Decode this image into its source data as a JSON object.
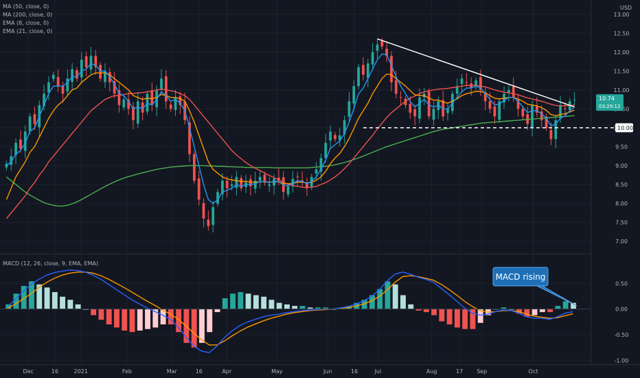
{
  "chart_data": {
    "type": "candlestick",
    "price_panel": {
      "currency": "USD",
      "y_ticks": [
        "13.00",
        "12.50",
        "12.00",
        "11.50",
        "11.00",
        "10.50",
        "10.00",
        "9.50",
        "9.00",
        "8.50",
        "8.00",
        "7.50",
        "7.00"
      ],
      "ylim": [
        6.8,
        13.05
      ],
      "last_price": "10.74",
      "countdown": "03:29:12",
      "support_level": "10.00",
      "indicators": [
        {
          "label": "MA (50, close, 0)",
          "color": "#ef5350"
        },
        {
          "label": "MA (200, close, 0)",
          "color": "#4caf50"
        },
        {
          "label": "EMA (8, close, 0)",
          "color": "#2196f3"
        },
        {
          "label": "EMA (21, close, 0)",
          "color": "#ff9800"
        }
      ],
      "close": [
        9.05,
        9.25,
        9.6,
        9.45,
        9.9,
        10.3,
        10.1,
        10.6,
        10.9,
        11.2,
        11.4,
        11.1,
        10.9,
        11.3,
        11.55,
        11.3,
        11.8,
        11.6,
        11.9,
        11.6,
        11.3,
        11.5,
        11.2,
        10.9,
        10.6,
        10.75,
        10.5,
        10.2,
        10.7,
        10.4,
        10.9,
        10.6,
        11.0,
        11.3,
        10.7,
        10.5,
        10.8,
        10.6,
        10.2,
        9.3,
        8.6,
        8.1,
        7.6,
        7.4,
        7.9,
        8.3,
        8.6,
        8.4,
        8.5,
        8.7,
        8.4,
        8.55,
        8.45,
        8.6,
        8.7,
        8.55,
        8.5,
        8.65,
        8.6,
        8.3,
        8.45,
        8.65,
        8.7,
        8.55,
        8.4,
        8.7,
        8.9,
        9.2,
        9.6,
        9.9,
        9.7,
        9.8,
        10.2,
        10.7,
        11.1,
        11.6,
        11.4,
        11.7,
        12.0,
        12.2,
        12.15,
        11.9,
        11.2,
        10.9,
        10.8,
        10.6,
        10.4,
        10.3,
        10.8,
        10.9,
        10.3,
        10.5,
        10.7,
        10.3,
        10.5,
        10.9,
        11.1,
        11.3,
        11.2,
        11.05,
        11.25,
        11.0,
        10.7,
        10.5,
        10.3,
        10.7,
        10.9,
        11.0,
        10.8,
        10.5,
        10.3,
        10.1,
        10.6,
        10.4,
        10.2,
        10.0,
        9.7,
        10.2,
        10.6,
        10.5,
        10.7,
        10.74
      ],
      "ema8": [
        9.0,
        9.1,
        9.3,
        9.4,
        9.6,
        9.9,
        10.0,
        10.3,
        10.6,
        10.9,
        11.1,
        11.1,
        11.1,
        11.2,
        11.35,
        11.35,
        11.5,
        11.55,
        11.7,
        11.65,
        11.5,
        11.5,
        11.35,
        11.15,
        10.9,
        10.85,
        10.7,
        10.5,
        10.55,
        10.5,
        10.65,
        10.6,
        10.75,
        10.95,
        10.85,
        10.7,
        10.75,
        10.65,
        10.45,
        10.0,
        9.5,
        9.0,
        8.5,
        8.1,
        8.0,
        8.1,
        8.3,
        8.35,
        8.4,
        8.5,
        8.45,
        8.5,
        8.5,
        8.52,
        8.58,
        8.57,
        8.55,
        8.58,
        8.58,
        8.48,
        8.47,
        8.53,
        8.6,
        8.58,
        8.52,
        8.58,
        8.7,
        8.9,
        9.15,
        9.45,
        9.55,
        9.65,
        9.85,
        10.15,
        10.5,
        10.9,
        11.05,
        11.3,
        11.55,
        11.8,
        11.95,
        11.93,
        11.65,
        11.35,
        11.1,
        10.9,
        10.7,
        10.55,
        10.65,
        10.75,
        10.6,
        10.55,
        10.6,
        10.5,
        10.5,
        10.65,
        10.8,
        10.95,
        11.05,
        11.05,
        11.1,
        11.05,
        10.9,
        10.75,
        10.6,
        10.63,
        10.72,
        10.8,
        10.8,
        10.7,
        10.55,
        10.4,
        10.45,
        10.45,
        10.37,
        10.25,
        10.05,
        10.1,
        10.25,
        10.32,
        10.45,
        10.55
      ],
      "ema21": [
        8.1,
        8.4,
        8.7,
        8.9,
        9.1,
        9.35,
        9.5,
        9.75,
        10.0,
        10.25,
        10.45,
        10.6,
        10.7,
        10.85,
        11.0,
        11.05,
        11.2,
        11.3,
        11.4,
        11.45,
        11.45,
        11.45,
        11.4,
        11.3,
        11.2,
        11.1,
        11.0,
        10.85,
        10.8,
        10.75,
        10.78,
        10.77,
        10.8,
        10.88,
        10.85,
        10.8,
        10.8,
        10.77,
        10.7,
        10.45,
        10.15,
        9.8,
        9.45,
        9.1,
        8.9,
        8.8,
        8.7,
        8.65,
        8.62,
        8.6,
        8.58,
        8.58,
        8.56,
        8.56,
        8.57,
        8.57,
        8.56,
        8.57,
        8.57,
        8.53,
        8.52,
        8.53,
        8.56,
        8.56,
        8.54,
        8.56,
        8.61,
        8.7,
        8.85,
        9.05,
        9.2,
        9.32,
        9.5,
        9.72,
        9.98,
        10.25,
        10.45,
        10.65,
        10.9,
        11.1,
        11.3,
        11.42,
        11.4,
        11.3,
        11.2,
        11.1,
        10.98,
        10.87,
        10.85,
        10.85,
        10.78,
        10.73,
        10.73,
        10.68,
        10.65,
        10.7,
        10.77,
        10.85,
        10.9,
        10.93,
        10.96,
        10.96,
        10.92,
        10.85,
        10.78,
        10.76,
        10.78,
        10.8,
        10.8,
        10.76,
        10.7,
        10.62,
        10.6,
        10.58,
        10.53,
        10.46,
        10.35,
        10.32,
        10.35,
        10.37,
        10.42,
        10.47
      ],
      "ma50": [
        7.6,
        7.75,
        7.9,
        8.05,
        8.2,
        8.4,
        8.55,
        8.75,
        8.9,
        9.1,
        9.25,
        9.4,
        9.55,
        9.7,
        9.85,
        10.0,
        10.15,
        10.3,
        10.45,
        10.55,
        10.65,
        10.75,
        10.8,
        10.85,
        10.85,
        10.88,
        10.9,
        10.9,
        10.92,
        10.93,
        10.95,
        10.97,
        11.0,
        11.02,
        11.0,
        10.98,
        10.95,
        10.9,
        10.85,
        10.75,
        10.6,
        10.45,
        10.3,
        10.15,
        10.0,
        9.85,
        9.7,
        9.55,
        9.4,
        9.28,
        9.18,
        9.08,
        9.0,
        8.93,
        8.87,
        8.8,
        8.74,
        8.68,
        8.62,
        8.56,
        8.5,
        8.47,
        8.45,
        8.43,
        8.42,
        8.43,
        8.45,
        8.5,
        8.55,
        8.62,
        8.7,
        8.8,
        8.92,
        9.05,
        9.2,
        9.35,
        9.5,
        9.65,
        9.8,
        9.97,
        10.12,
        10.27,
        10.4,
        10.5,
        10.6,
        10.7,
        10.78,
        10.84,
        10.9,
        10.95,
        10.98,
        11.0,
        11.02,
        11.03,
        11.04,
        11.06,
        11.08,
        11.1,
        11.12,
        11.12,
        11.12,
        11.1,
        11.08,
        11.04,
        11.0,
        10.97,
        10.94,
        10.92,
        10.9,
        10.87,
        10.83,
        10.79,
        10.76,
        10.73,
        10.7,
        10.66,
        10.62,
        10.59,
        10.58,
        10.58,
        10.59,
        10.6
      ],
      "ma200": [
        8.7,
        8.6,
        8.5,
        8.4,
        8.3,
        8.22,
        8.15,
        8.08,
        8.02,
        7.98,
        7.95,
        7.93,
        7.93,
        7.95,
        7.99,
        8.04,
        8.1,
        8.17,
        8.24,
        8.31,
        8.38,
        8.45,
        8.51,
        8.57,
        8.62,
        8.67,
        8.71,
        8.74,
        8.78,
        8.81,
        8.84,
        8.87,
        8.9,
        8.92,
        8.94,
        8.96,
        8.97,
        8.98,
        8.99,
        9.0,
        9.0,
        9.0,
        9.0,
        8.99,
        8.99,
        8.98,
        8.98,
        8.97,
        8.97,
        8.96,
        8.96,
        8.95,
        8.95,
        8.95,
        8.95,
        8.95,
        8.95,
        8.94,
        8.94,
        8.94,
        8.94,
        8.94,
        8.94,
        8.94,
        8.94,
        8.95,
        8.96,
        8.97,
        8.98,
        9.0,
        9.02,
        9.05,
        9.08,
        9.12,
        9.16,
        9.2,
        9.25,
        9.3,
        9.35,
        9.4,
        9.45,
        9.5,
        9.54,
        9.58,
        9.62,
        9.66,
        9.7,
        9.74,
        9.78,
        9.82,
        9.86,
        9.9,
        9.93,
        9.96,
        9.98,
        10.0,
        10.02,
        10.04,
        10.06,
        10.08,
        10.1,
        10.12,
        10.13,
        10.14,
        10.15,
        10.16,
        10.17,
        10.18,
        10.19,
        10.2,
        10.21,
        10.22,
        10.23,
        10.24,
        10.25,
        10.26,
        10.27,
        10.28,
        10.29,
        10.3,
        10.31,
        10.32
      ],
      "trendline": {
        "from": {
          "index": 79,
          "price": 12.35
        },
        "to": {
          "index": 121,
          "price": 10.55
        }
      }
    },
    "macd_panel": {
      "label": "MACD (12, 26, close, 9, EMA, EMA)",
      "y_ticks": [
        "0.50",
        "0.00",
        "-0.50",
        "-1.00"
      ],
      "ylim": [
        -1.05,
        1.0
      ],
      "annotation": "MACD rising",
      "macd": [
        0.05,
        0.2,
        0.35,
        0.48,
        0.58,
        0.66,
        0.71,
        0.74,
        0.76,
        0.75,
        0.72,
        0.66,
        0.58,
        0.48,
        0.38,
        0.28,
        0.18,
        0.1,
        0.02,
        -0.05,
        -0.12,
        -0.2,
        -0.35,
        -0.55,
        -0.72,
        -0.82,
        -0.85,
        -0.72,
        -0.55,
        -0.42,
        -0.32,
        -0.25,
        -0.2,
        -0.15,
        -0.12,
        -0.1,
        -0.07,
        -0.05,
        -0.03,
        -0.02,
        -0.01,
        0.0,
        0.0,
        0.02,
        0.05,
        0.1,
        0.16,
        0.25,
        0.38,
        0.55,
        0.68,
        0.72,
        0.68,
        0.62,
        0.58,
        0.52,
        0.4,
        0.28,
        0.15,
        0.02,
        -0.08,
        -0.12,
        -0.1,
        -0.05,
        -0.02,
        -0.03,
        -0.08,
        -0.15,
        -0.18,
        -0.18,
        -0.2,
        -0.15,
        -0.08,
        -0.05
      ],
      "signal": [
        0.02,
        0.1,
        0.2,
        0.3,
        0.42,
        0.52,
        0.6,
        0.66,
        0.7,
        0.72,
        0.72,
        0.7,
        0.65,
        0.58,
        0.5,
        0.42,
        0.33,
        0.24,
        0.15,
        0.07,
        -0.02,
        -0.1,
        -0.2,
        -0.33,
        -0.47,
        -0.6,
        -0.7,
        -0.7,
        -0.62,
        -0.52,
        -0.43,
        -0.35,
        -0.29,
        -0.23,
        -0.18,
        -0.14,
        -0.1,
        -0.07,
        -0.05,
        -0.03,
        -0.02,
        -0.01,
        0.0,
        0.01,
        0.03,
        0.06,
        0.1,
        0.16,
        0.25,
        0.37,
        0.52,
        0.63,
        0.65,
        0.63,
        0.6,
        0.56,
        0.48,
        0.38,
        0.27,
        0.15,
        0.05,
        -0.03,
        -0.06,
        -0.05,
        -0.03,
        -0.03,
        -0.05,
        -0.1,
        -0.14,
        -0.16,
        -0.18,
        -0.17,
        -0.13,
        -0.09
      ]
    },
    "x_labels": [
      {
        "label": "Dec",
        "pos": 0.048
      },
      {
        "label": "16",
        "pos": 0.093
      },
      {
        "label": "2021",
        "pos": 0.137
      },
      {
        "label": "Feb",
        "pos": 0.215
      },
      {
        "label": "Mar",
        "pos": 0.291
      },
      {
        "label": "16",
        "pos": 0.337
      },
      {
        "label": "Apr",
        "pos": 0.384
      },
      {
        "label": "May",
        "pos": 0.469
      },
      {
        "label": "Jun",
        "pos": 0.555
      },
      {
        "label": "16",
        "pos": 0.6
      },
      {
        "label": "Jul",
        "pos": 0.64
      },
      {
        "label": "Aug",
        "pos": 0.731
      },
      {
        "label": "17",
        "pos": 0.778
      },
      {
        "label": "Sep",
        "pos": 0.816
      },
      {
        "label": "Oct",
        "pos": 0.903
      }
    ]
  }
}
